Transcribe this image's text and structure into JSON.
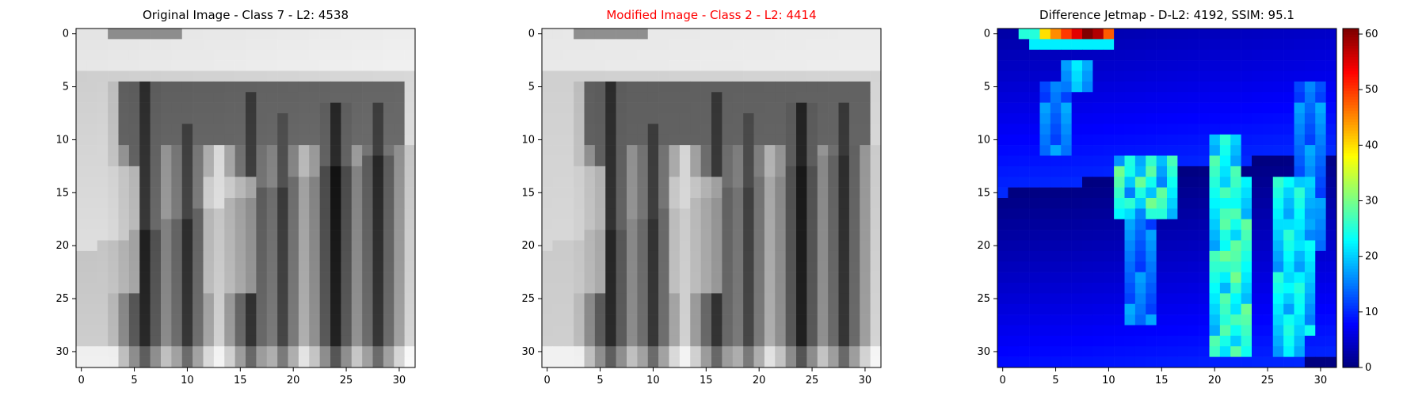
{
  "colors": {
    "title_default": "#000000",
    "title_highlight": "#ff0000",
    "axis": "#000000"
  },
  "chart_data": [
    {
      "type": "heatmap",
      "title": "Original Image - Class 7 - L2: 4538",
      "colormap": "gray",
      "grid_size": [
        32,
        32
      ],
      "xlim": [
        0,
        31
      ],
      "ylim": [
        0,
        31
      ],
      "xticks": [
        0,
        5,
        10,
        15,
        20,
        25,
        30
      ],
      "yticks": [
        0,
        5,
        10,
        15,
        20,
        25,
        30
      ],
      "shape": "striped_dark_letters"
    },
    {
      "type": "heatmap",
      "title": "Modified Image - Class 2 - L2: 4414",
      "title_color": "#ff0000",
      "colormap": "gray",
      "grid_size": [
        32,
        32
      ],
      "xlim": [
        0,
        31
      ],
      "ylim": [
        0,
        31
      ],
      "xticks": [
        0,
        5,
        10,
        15,
        20,
        25,
        30
      ],
      "yticks": [
        0,
        5,
        10,
        15,
        20,
        25,
        30
      ],
      "shape": "striped_dark_letters_smoothed"
    },
    {
      "type": "heatmap",
      "title": "Difference Jetmap - D-L2: 4192, SSIM: 95.1",
      "colormap": "jet",
      "grid_size": [
        32,
        32
      ],
      "xlim": [
        0,
        31
      ],
      "ylim": [
        0,
        31
      ],
      "xticks": [
        0,
        5,
        10,
        15,
        20,
        25,
        30
      ],
      "yticks": [
        0,
        5,
        10,
        15,
        20,
        25,
        30
      ],
      "colorbar": {
        "min": 0,
        "max": 61,
        "ticks": [
          0,
          10,
          20,
          30,
          40,
          50,
          60
        ]
      }
    }
  ]
}
